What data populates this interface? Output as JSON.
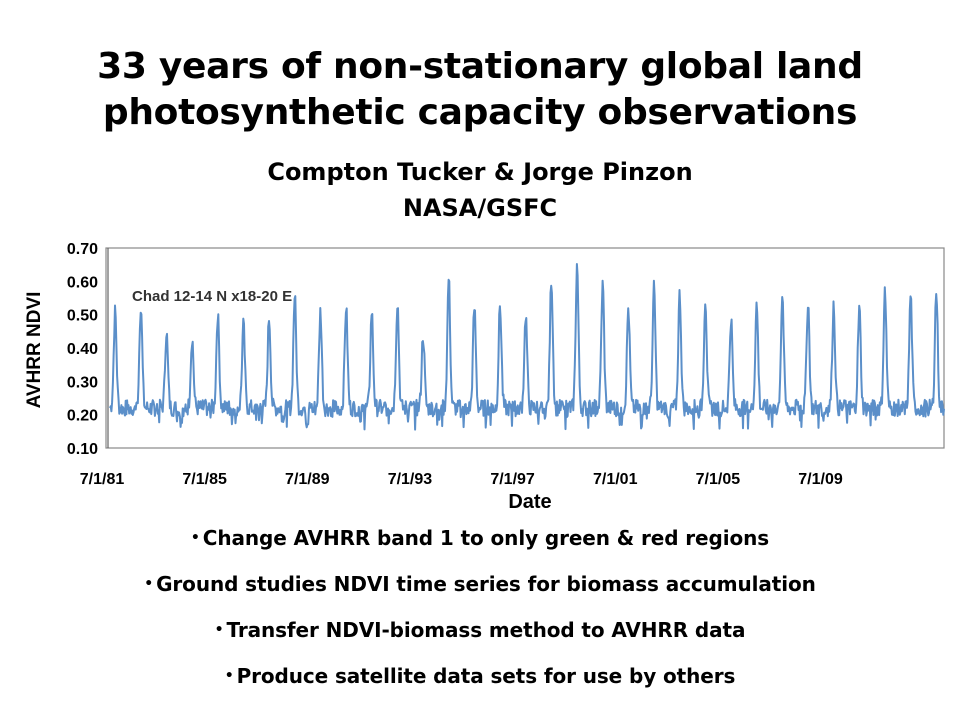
{
  "title": {
    "line1": "33 years of non-stationary global land",
    "line2": "photosynthetic capacity observations",
    "authors": "Compton Tucker & Jorge Pinzon",
    "affiliation": "NASA/GSFC"
  },
  "chart_data": {
    "type": "line",
    "title": "",
    "annotation": "Chad 12-14 N x18-20 E",
    "xlabel": "Date",
    "ylabel": "AVHRR NDVI",
    "ylim": [
      0.1,
      0.7
    ],
    "yticks": [
      "0.10",
      "0.20",
      "0.30",
      "0.40",
      "0.50",
      "0.60",
      "0.70"
    ],
    "xticks": [
      "7/1/81",
      "7/1/85",
      "7/1/89",
      "7/1/93",
      "7/1/97",
      "7/1/01",
      "7/1/05",
      "7/1/09"
    ],
    "x_range": [
      "1981-07",
      "2013-12"
    ],
    "grid": false,
    "line_color": "#5b8fc9",
    "series": [
      {
        "seasonal_peaks": [
          {
            "year": 1981,
            "ndvi": 0.51
          },
          {
            "year": 1982,
            "ndvi": 0.53
          },
          {
            "year": 1983,
            "ndvi": 0.45
          },
          {
            "year": 1984,
            "ndvi": 0.43
          },
          {
            "year": 1985,
            "ndvi": 0.5
          },
          {
            "year": 1986,
            "ndvi": 0.47
          },
          {
            "year": 1987,
            "ndvi": 0.49
          },
          {
            "year": 1988,
            "ndvi": 0.56
          },
          {
            "year": 1989,
            "ndvi": 0.51
          },
          {
            "year": 1990,
            "ndvi": 0.52
          },
          {
            "year": 1991,
            "ndvi": 0.51
          },
          {
            "year": 1992,
            "ndvi": 0.54
          },
          {
            "year": 1993,
            "ndvi": 0.44
          },
          {
            "year": 1994,
            "ndvi": 0.61
          },
          {
            "year": 1995,
            "ndvi": 0.52
          },
          {
            "year": 1996,
            "ndvi": 0.53
          },
          {
            "year": 1997,
            "ndvi": 0.5
          },
          {
            "year": 1998,
            "ndvi": 0.61
          },
          {
            "year": 1999,
            "ndvi": 0.65
          },
          {
            "year": 2000,
            "ndvi": 0.59
          },
          {
            "year": 2001,
            "ndvi": 0.52
          },
          {
            "year": 2002,
            "ndvi": 0.58
          },
          {
            "year": 2003,
            "ndvi": 0.56
          },
          {
            "year": 2004,
            "ndvi": 0.55
          },
          {
            "year": 2005,
            "ndvi": 0.49
          },
          {
            "year": 2006,
            "ndvi": 0.53
          },
          {
            "year": 2007,
            "ndvi": 0.56
          },
          {
            "year": 2008,
            "ndvi": 0.54
          },
          {
            "year": 2009,
            "ndvi": 0.53
          },
          {
            "year": 2010,
            "ndvi": 0.52
          },
          {
            "year": 2011,
            "ndvi": 0.57
          },
          {
            "year": 2012,
            "ndvi": 0.56
          },
          {
            "year": 2013,
            "ndvi": 0.57
          }
        ],
        "dry_season_baseline": 0.22
      }
    ]
  },
  "bullets": [
    "Change AVHRR band 1 to only green & red regions",
    "Ground studies NDVI time series for biomass accumulation",
    "Transfer NDVI-biomass method to AVHRR data",
    "Produce satellite data sets for use by others"
  ]
}
